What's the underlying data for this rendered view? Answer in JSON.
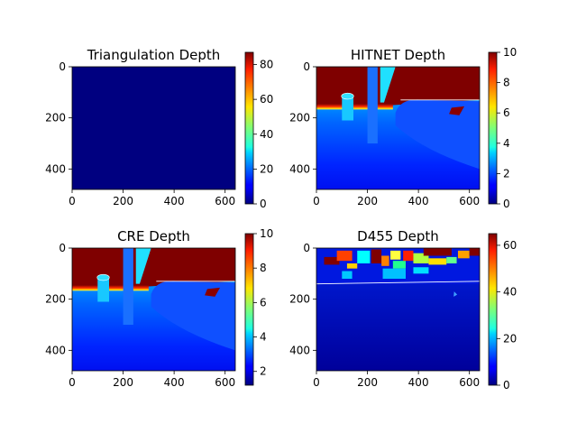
{
  "figure": {
    "colormap": "jet",
    "background": "#ffffff"
  },
  "chart_data": [
    {
      "type": "heatmap",
      "title": "Triangulation Depth",
      "image_width": 640,
      "image_height": 480,
      "x_ticks": [
        0,
        200,
        400,
        600
      ],
      "y_ticks": [
        0,
        200,
        400
      ],
      "colorbar": {
        "min": 0,
        "max": 87,
        "ticks": [
          0,
          20,
          40,
          60,
          80
        ]
      },
      "content": "uniform near-zero depth"
    },
    {
      "type": "heatmap",
      "title": "HITNET Depth",
      "image_width": 640,
      "image_height": 480,
      "x_ticks": [
        0,
        200,
        400,
        600
      ],
      "y_ticks": [
        0,
        200,
        400
      ],
      "colorbar": {
        "min": 0,
        "max": 10,
        "ticks": [
          0,
          2,
          4,
          6,
          8,
          10
        ]
      },
      "content": "saturated top, blue-cyan gradient floor"
    },
    {
      "type": "heatmap",
      "title": "CRE Depth",
      "image_width": 640,
      "image_height": 480,
      "x_ticks": [
        0,
        200,
        400,
        600
      ],
      "y_ticks": [
        0,
        200,
        400
      ],
      "colorbar": {
        "min": 1.2,
        "max": 10,
        "ticks": [
          2,
          4,
          6,
          8,
          10
        ]
      },
      "content": "saturated top, blue-cyan gradient floor"
    },
    {
      "type": "heatmap",
      "title": "D455 Depth",
      "image_width": 640,
      "image_height": 480,
      "x_ticks": [
        0,
        200,
        400,
        600
      ],
      "y_ticks": [
        0,
        200,
        400
      ],
      "colorbar": {
        "min": 0,
        "max": 65,
        "ticks": [
          0,
          20,
          40,
          60
        ]
      },
      "content": "mostly low depth with noisy high-depth top band"
    }
  ]
}
